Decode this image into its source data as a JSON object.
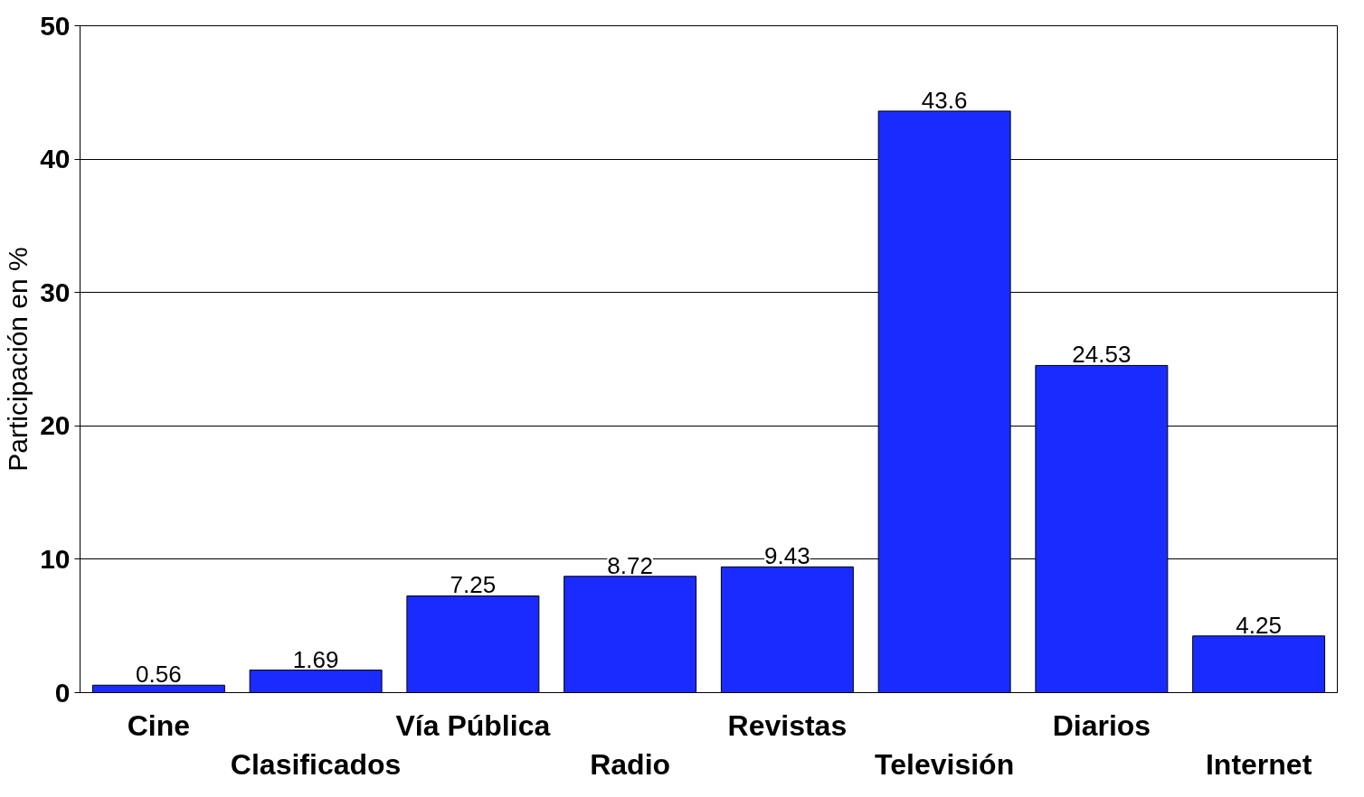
{
  "chart_data": {
    "type": "bar",
    "ylabel": "Participación en %",
    "categories": [
      "Cine",
      "Clasificados",
      "Vía Pública",
      "Radio",
      "Revistas",
      "Televisión",
      "Diarios",
      "Internet"
    ],
    "values": [
      0.56,
      1.69,
      7.25,
      8.72,
      9.43,
      43.6,
      24.53,
      4.25
    ],
    "color": "#1a2bff",
    "ylim": [
      0,
      50
    ],
    "yticks": [
      0,
      10,
      20,
      30,
      40,
      50
    ],
    "grid": "y",
    "data_labels": true
  }
}
